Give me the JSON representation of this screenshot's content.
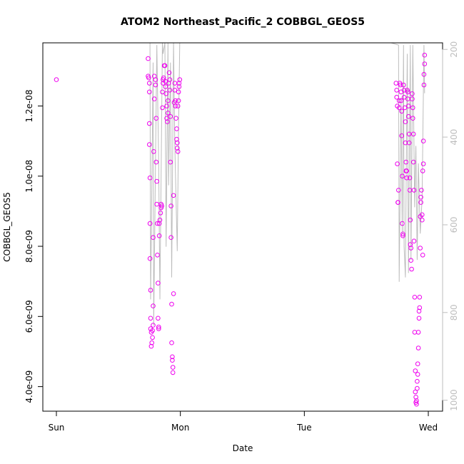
{
  "chart_data": {
    "type": "scatter",
    "title": "ATOM2 Northeast_Pacific_2 COBBGL_GEOS5",
    "xlabel": "Date",
    "ylabel": "COBBGL_GEOS5",
    "x_ticks": [
      "Sun",
      "Mon",
      "Tue",
      "Wed"
    ],
    "xlim": [
      0,
      3.1
    ],
    "y_ticks": [
      "4.0e-09",
      "6.0e-09",
      "8.0e-09",
      "1.0e-08",
      "1.2e-08"
    ],
    "ylim": [
      3.3e-09,
      1.38e-08
    ],
    "y2_ticks": [
      "200",
      "400",
      "600",
      "800",
      "1000"
    ],
    "y2lim": [
      185,
      1025
    ],
    "y2_reversed": true,
    "point_color": "#ee00ee",
    "line_color": "#bdbdbd",
    "series": [
      {
        "points": [
          [
            0.0,
            1.275e-08
          ],
          [
            0.74,
            1.335e-08
          ],
          [
            0.74,
            1.285e-08
          ],
          [
            0.745,
            1.28e-08
          ],
          [
            0.75,
            1.265e-08
          ],
          [
            0.75,
            1.24e-08
          ],
          [
            0.75,
            1.15e-08
          ],
          [
            0.75,
            1.09e-08
          ],
          [
            0.755,
            9.95e-09
          ],
          [
            0.755,
            8.65e-09
          ],
          [
            0.755,
            7.65e-09
          ],
          [
            0.76,
            6.75e-09
          ],
          [
            0.76,
            5.95e-09
          ],
          [
            0.76,
            5.65e-09
          ],
          [
            0.765,
            5.55e-09
          ],
          [
            0.765,
            5.15e-09
          ],
          [
            0.77,
            5.25e-09
          ],
          [
            0.775,
            5.4e-09
          ],
          [
            0.775,
            5.6e-09
          ],
          [
            0.78,
            5.75e-09
          ],
          [
            0.78,
            6.3e-09
          ],
          [
            0.78,
            8.25e-09
          ],
          [
            0.785,
            1.07e-08
          ],
          [
            0.79,
            1.22e-08
          ],
          [
            0.79,
            1.285e-08
          ],
          [
            0.8,
            1.275e-08
          ],
          [
            0.8,
            1.26e-08
          ],
          [
            0.805,
            1.165e-08
          ],
          [
            0.805,
            1.04e-08
          ],
          [
            0.81,
            9.85e-09
          ],
          [
            0.81,
            9.2e-09
          ],
          [
            0.815,
            8.65e-09
          ],
          [
            0.815,
            7.75e-09
          ],
          [
            0.82,
            6.95e-09
          ],
          [
            0.82,
            5.95e-09
          ],
          [
            0.825,
            5.65e-09
          ],
          [
            0.825,
            5.7e-09
          ],
          [
            0.83,
            8.3e-09
          ],
          [
            0.83,
            8.65e-09
          ],
          [
            0.835,
            8.75e-09
          ],
          [
            0.84,
            8.95e-09
          ],
          [
            0.845,
            9.1e-09
          ],
          [
            0.845,
            9.2e-09
          ],
          [
            0.85,
            9.15e-09
          ],
          [
            0.855,
            1.195e-08
          ],
          [
            0.855,
            1.24e-08
          ],
          [
            0.86,
            1.265e-08
          ],
          [
            0.86,
            1.275e-08
          ],
          [
            0.865,
            1.28e-08
          ],
          [
            0.87,
            1.315e-08
          ],
          [
            0.875,
            1.315e-08
          ],
          [
            0.88,
            1.27e-08
          ],
          [
            0.88,
            1.255e-08
          ],
          [
            0.885,
            1.235e-08
          ],
          [
            0.89,
            1.2e-08
          ],
          [
            0.89,
            1.165e-08
          ],
          [
            0.895,
            1.155e-08
          ],
          [
            0.9,
            1.18e-08
          ],
          [
            0.9,
            1.215e-08
          ],
          [
            0.905,
            1.265e-08
          ],
          [
            0.91,
            1.295e-08
          ],
          [
            0.915,
            1.275e-08
          ],
          [
            0.915,
            1.245e-08
          ],
          [
            0.92,
            1.17e-08
          ],
          [
            0.92,
            1.04e-08
          ],
          [
            0.925,
            9.15e-09
          ],
          [
            0.925,
            8.25e-09
          ],
          [
            0.93,
            6.35e-09
          ],
          [
            0.93,
            5.25e-09
          ],
          [
            0.935,
            4.85e-09
          ],
          [
            0.935,
            4.75e-09
          ],
          [
            0.94,
            4.55e-09
          ],
          [
            0.94,
            4.4e-09
          ],
          [
            0.945,
            6.65e-09
          ],
          [
            0.945,
            9.45e-09
          ],
          [
            0.95,
            1.21e-08
          ],
          [
            0.955,
            1.265e-08
          ],
          [
            0.955,
            1.245e-08
          ],
          [
            0.96,
            1.215e-08
          ],
          [
            0.96,
            1.2e-08
          ],
          [
            0.965,
            1.165e-08
          ],
          [
            0.97,
            1.135e-08
          ],
          [
            0.97,
            1.105e-08
          ],
          [
            0.975,
            1.095e-08
          ],
          [
            0.975,
            1.08e-08
          ],
          [
            0.98,
            1.07e-08
          ],
          [
            0.98,
            1.2e-08
          ],
          [
            0.985,
            1.215e-08
          ],
          [
            0.985,
            1.24e-08
          ],
          [
            0.99,
            1.255e-08
          ],
          [
            0.99,
            1.265e-08
          ],
          [
            0.995,
            1.275e-08
          ],
          [
            2.74,
            1.265e-08
          ],
          [
            2.745,
            1.245e-08
          ],
          [
            2.745,
            1.225e-08
          ],
          [
            2.75,
            1.2e-08
          ],
          [
            2.75,
            1.035e-08
          ],
          [
            2.755,
            9.25e-09
          ],
          [
            2.755,
            9.25e-09
          ],
          [
            2.76,
            9.6e-09
          ],
          [
            2.765,
            1.195e-08
          ],
          [
            2.765,
            1.215e-08
          ],
          [
            2.77,
            1.265e-08
          ],
          [
            2.775,
            1.26e-08
          ],
          [
            2.78,
            1.24e-08
          ],
          [
            2.78,
            1.215e-08
          ],
          [
            2.785,
            1.185e-08
          ],
          [
            2.785,
            1.115e-08
          ],
          [
            2.79,
            1e-08
          ],
          [
            2.79,
            8.65e-09
          ],
          [
            2.795,
            8.35e-09
          ],
          [
            2.795,
            8.3e-09
          ],
          [
            2.8,
            1.26e-08
          ],
          [
            2.805,
            1.245e-08
          ],
          [
            2.805,
            1.225e-08
          ],
          [
            2.81,
            1.195e-08
          ],
          [
            2.815,
            1.155e-08
          ],
          [
            2.815,
            1.095e-08
          ],
          [
            2.82,
            1.04e-08
          ],
          [
            2.82,
            1.015e-08
          ],
          [
            2.825,
            9.95e-09
          ],
          [
            2.825,
            1.015e-08
          ],
          [
            2.83,
            1.245e-08
          ],
          [
            2.835,
            1.24e-08
          ],
          [
            2.835,
            1.22e-08
          ],
          [
            2.84,
            1.2e-08
          ],
          [
            2.84,
            1.17e-08
          ],
          [
            2.845,
            1.12e-08
          ],
          [
            2.845,
            1.095e-08
          ],
          [
            2.85,
            9.95e-09
          ],
          [
            2.85,
            9.6e-09
          ],
          [
            2.855,
            8.75e-09
          ],
          [
            2.855,
            8.05e-09
          ],
          [
            2.86,
            7.95e-09
          ],
          [
            2.86,
            7.6e-09
          ],
          [
            2.865,
            7.35e-09
          ],
          [
            2.87,
            1.235e-08
          ],
          [
            2.87,
            1.22e-08
          ],
          [
            2.875,
            1.195e-08
          ],
          [
            2.875,
            1.165e-08
          ],
          [
            2.88,
            1.12e-08
          ],
          [
            2.88,
            1.04e-08
          ],
          [
            2.885,
            9.6e-09
          ],
          [
            2.885,
            8.15e-09
          ],
          [
            2.89,
            6.55e-09
          ],
          [
            2.89,
            5.55e-09
          ],
          [
            2.895,
            4.45e-09
          ],
          [
            2.895,
            3.85e-09
          ],
          [
            2.9,
            3.7e-09
          ],
          [
            2.9,
            3.55e-09
          ],
          [
            2.905,
            3.5e-09
          ],
          [
            2.905,
            3.6e-09
          ],
          [
            2.91,
            3.95e-09
          ],
          [
            2.91,
            4.15e-09
          ],
          [
            2.915,
            4.35e-09
          ],
          [
            2.915,
            4.65e-09
          ],
          [
            2.92,
            5.1e-09
          ],
          [
            2.92,
            5.55e-09
          ],
          [
            2.925,
            5.95e-09
          ],
          [
            2.925,
            6.15e-09
          ],
          [
            2.93,
            6.25e-09
          ],
          [
            2.93,
            6.55e-09
          ],
          [
            2.935,
            7.95e-09
          ],
          [
            2.935,
            8.85e-09
          ],
          [
            2.94,
            9.25e-09
          ],
          [
            2.94,
            9.4e-09
          ],
          [
            2.945,
            9.6e-09
          ],
          [
            2.95,
            8.75e-09
          ],
          [
            2.95,
            8.9e-09
          ],
          [
            2.955,
            7.75e-09
          ],
          [
            2.955,
            1.015e-08
          ],
          [
            2.96,
            1.035e-08
          ],
          [
            2.96,
            1.1e-08
          ],
          [
            2.965,
            1.26e-08
          ],
          [
            2.965,
            1.29e-08
          ],
          [
            2.97,
            1.32e-08
          ],
          [
            2.97,
            1.345e-08
          ]
        ]
      }
    ],
    "pressure_series": {
      "segments": [
        [
          [
            0.755,
            185
          ],
          [
            0.76,
            770
          ],
          [
            0.78,
            230
          ],
          [
            0.785,
            830
          ],
          [
            0.81,
            190
          ],
          [
            0.825,
            460
          ],
          [
            0.835,
            770
          ],
          [
            0.855,
            185
          ],
          [
            0.86,
            210
          ],
          [
            0.875,
            185
          ],
          [
            0.885,
            650
          ],
          [
            0.9,
            185
          ],
          [
            0.905,
            510
          ],
          [
            0.92,
            230
          ],
          [
            0.93,
            720
          ],
          [
            0.945,
            185
          ],
          [
            0.955,
            420
          ],
          [
            0.975,
            660
          ],
          [
            0.985,
            380
          ],
          [
            0.995,
            185
          ]
        ],
        [
          [
            2.7,
            185
          ],
          [
            2.76,
            190
          ],
          [
            2.765,
            730
          ],
          [
            2.78,
            310
          ],
          [
            2.79,
            620
          ],
          [
            2.8,
            190
          ],
          [
            2.805,
            650
          ],
          [
            2.815,
            720
          ],
          [
            2.83,
            210
          ],
          [
            2.84,
            710
          ],
          [
            2.855,
            190
          ],
          [
            2.86,
            680
          ],
          [
            2.875,
            190
          ],
          [
            2.89,
            560
          ],
          [
            2.9,
            420
          ],
          [
            2.91,
            680
          ],
          [
            2.92,
            460
          ],
          [
            2.935,
            620
          ],
          [
            2.95,
            540
          ],
          [
            2.965,
            190
          ],
          [
            2.97,
            300
          ]
        ]
      ]
    }
  }
}
